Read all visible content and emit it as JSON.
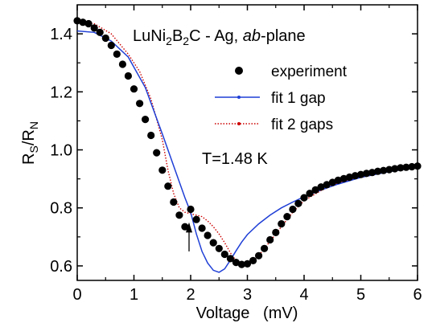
{
  "chart_data": {
    "type": "scatter",
    "title": "",
    "xlabel": "Voltage   (mV)",
    "ylabel": {
      "main": "R",
      "sub1": "S",
      "mid": "/R",
      "sub2": "N"
    },
    "xlim": [
      0,
      6
    ],
    "ylim": [
      0.55,
      1.5
    ],
    "x_ticks": [
      0,
      1,
      2,
      3,
      4,
      5,
      6
    ],
    "y_ticks": [
      0.6,
      0.8,
      1.0,
      1.2,
      1.4
    ],
    "y_tick_labels": [
      "0.6",
      "0.8",
      "1.0",
      "1.2",
      "1.4"
    ],
    "grid": false,
    "legend_placement": "top-right",
    "annotations": {
      "sample": {
        "p1": "LuNi",
        "s1": "2",
        "p2": "B",
        "s2": "2",
        "p3": "C - Ag, ",
        "italic": "ab",
        "p4": "-plane"
      },
      "temperature": "T=1.48 K",
      "arrow_at_voltage": 2.0
    },
    "series": [
      {
        "name": "experiment",
        "style": "markers",
        "color": "#000000",
        "x": [
          0.0,
          0.1,
          0.2,
          0.3,
          0.4,
          0.5,
          0.6,
          0.7,
          0.8,
          0.9,
          1.0,
          1.1,
          1.2,
          1.3,
          1.4,
          1.5,
          1.6,
          1.7,
          1.8,
          1.9,
          2.0,
          2.1,
          2.2,
          2.3,
          2.4,
          2.5,
          2.6,
          2.7,
          2.8,
          2.9,
          3.0,
          3.1,
          3.2,
          3.3,
          3.4,
          3.5,
          3.6,
          3.7,
          3.8,
          3.9,
          4.0,
          4.1,
          4.2,
          4.3,
          4.4,
          4.5,
          4.6,
          4.7,
          4.8,
          4.9,
          5.0,
          5.1,
          5.2,
          5.3,
          5.4,
          5.5,
          5.6,
          5.7,
          5.8,
          5.9,
          6.0
        ],
        "y": [
          1.445,
          1.44,
          1.435,
          1.42,
          1.405,
          1.385,
          1.36,
          1.33,
          1.295,
          1.255,
          1.21,
          1.16,
          1.105,
          1.05,
          0.99,
          0.93,
          0.875,
          0.82,
          0.775,
          0.735,
          0.795,
          0.76,
          0.73,
          0.705,
          0.68,
          0.66,
          0.64,
          0.625,
          0.612,
          0.605,
          0.607,
          0.618,
          0.635,
          0.66,
          0.69,
          0.715,
          0.745,
          0.77,
          0.795,
          0.815,
          0.835,
          0.85,
          0.862,
          0.872,
          0.88,
          0.888,
          0.895,
          0.901,
          0.906,
          0.911,
          0.915,
          0.919,
          0.922,
          0.926,
          0.929,
          0.932,
          0.935,
          0.938,
          0.94,
          0.942,
          0.944
        ]
      },
      {
        "name": "fit 1 gap",
        "style": "solid",
        "color": "#1f3fd6",
        "x": [
          0.0,
          0.3,
          0.6,
          0.9,
          1.2,
          1.5,
          1.7,
          1.9,
          2.0,
          2.1,
          2.2,
          2.3,
          2.4,
          2.5,
          2.6,
          2.7,
          2.8,
          2.9,
          3.0,
          3.2,
          3.4,
          3.6,
          3.8,
          4.0,
          4.3,
          4.6,
          5.0,
          5.5,
          6.0
        ],
        "y": [
          1.41,
          1.405,
          1.375,
          1.32,
          1.215,
          1.055,
          0.945,
          0.835,
          0.785,
          0.71,
          0.65,
          0.61,
          0.585,
          0.578,
          0.59,
          0.62,
          0.652,
          0.682,
          0.708,
          0.745,
          0.775,
          0.8,
          0.82,
          0.838,
          0.862,
          0.882,
          0.905,
          0.925,
          0.94
        ]
      },
      {
        "name": "fit 2 gaps",
        "style": "dotted",
        "color": "#cc0000",
        "x": [
          0.0,
          0.3,
          0.6,
          0.9,
          1.1,
          1.3,
          1.5,
          1.6,
          1.7,
          1.8,
          1.9,
          2.0,
          2.1,
          2.2,
          2.3,
          2.4,
          2.5,
          2.6,
          2.7,
          2.8,
          2.9,
          3.0,
          3.2,
          3.4,
          3.6,
          3.8,
          4.0,
          4.3,
          4.6,
          5.0,
          5.5,
          6.0
        ],
        "y": [
          1.445,
          1.435,
          1.4,
          1.33,
          1.27,
          1.175,
          1.035,
          0.93,
          0.85,
          0.8,
          0.785,
          0.78,
          0.775,
          0.77,
          0.755,
          0.735,
          0.71,
          0.68,
          0.645,
          0.618,
          0.605,
          0.605,
          0.635,
          0.685,
          0.735,
          0.785,
          0.825,
          0.86,
          0.885,
          0.905,
          0.925,
          0.94
        ]
      }
    ]
  }
}
